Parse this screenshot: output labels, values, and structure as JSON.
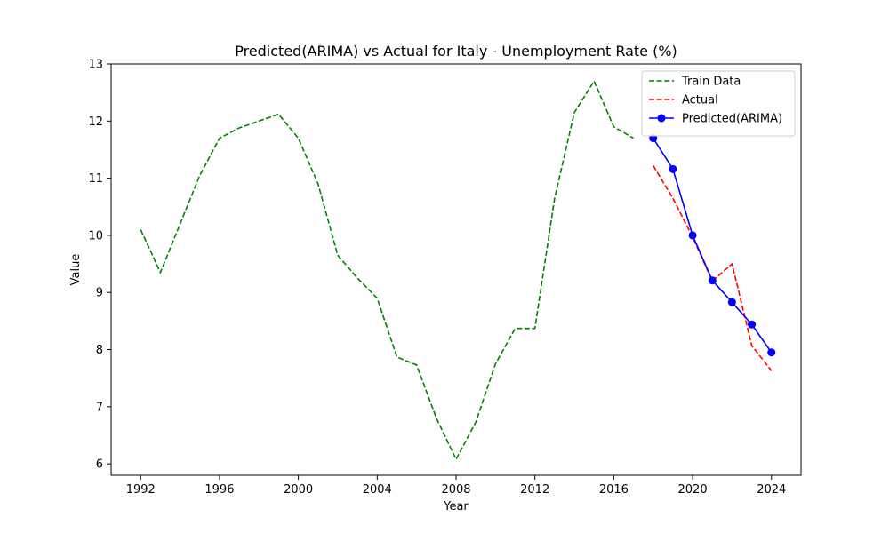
{
  "chart_data": {
    "type": "line",
    "title": "Predicted(ARIMA) vs Actual for Italy - Unemployment Rate (%)",
    "xlabel": "Year",
    "ylabel": "Value",
    "xlim": [
      1990.5,
      2025.5
    ],
    "ylim": [
      5.8,
      13.0
    ],
    "xticks": [
      1992,
      1996,
      2000,
      2004,
      2008,
      2012,
      2016,
      2020,
      2024
    ],
    "yticks": [
      6,
      7,
      8,
      9,
      10,
      11,
      12,
      13
    ],
    "grid": false,
    "legend_position": "top-right",
    "series": [
      {
        "name": "Train Data",
        "color": "#008000",
        "style": "dashed",
        "marker": "none",
        "x": [
          1992,
          1993,
          1994,
          1995,
          1996,
          1997,
          1998,
          1999,
          2000,
          2001,
          2002,
          2003,
          2004,
          2005,
          2006,
          2007,
          2008,
          2009,
          2010,
          2011,
          2012,
          2013,
          2014,
          2015,
          2016,
          2017
        ],
        "y": [
          10.1,
          9.35,
          10.2,
          11.05,
          11.7,
          11.88,
          12.0,
          12.12,
          11.7,
          10.9,
          9.65,
          9.25,
          8.9,
          7.87,
          7.73,
          6.8,
          6.08,
          6.73,
          7.75,
          8.37,
          8.37,
          10.65,
          12.15,
          12.7,
          11.9,
          11.7
        ]
      },
      {
        "name": "Actual",
        "color": "#ff0000",
        "style": "dashed",
        "marker": "none",
        "x": [
          2018,
          2019,
          2020,
          2021,
          2022,
          2023,
          2024
        ],
        "y": [
          11.22,
          10.65,
          9.97,
          9.2,
          9.5,
          8.07,
          7.63
        ]
      },
      {
        "name": "Predicted(ARIMA)",
        "color": "#0000ff",
        "style": "solid",
        "marker": "circle",
        "x": [
          2018,
          2019,
          2020,
          2021,
          2022,
          2023,
          2024
        ],
        "y": [
          11.7,
          11.16,
          10.0,
          9.21,
          8.83,
          8.44,
          7.95
        ]
      }
    ]
  }
}
